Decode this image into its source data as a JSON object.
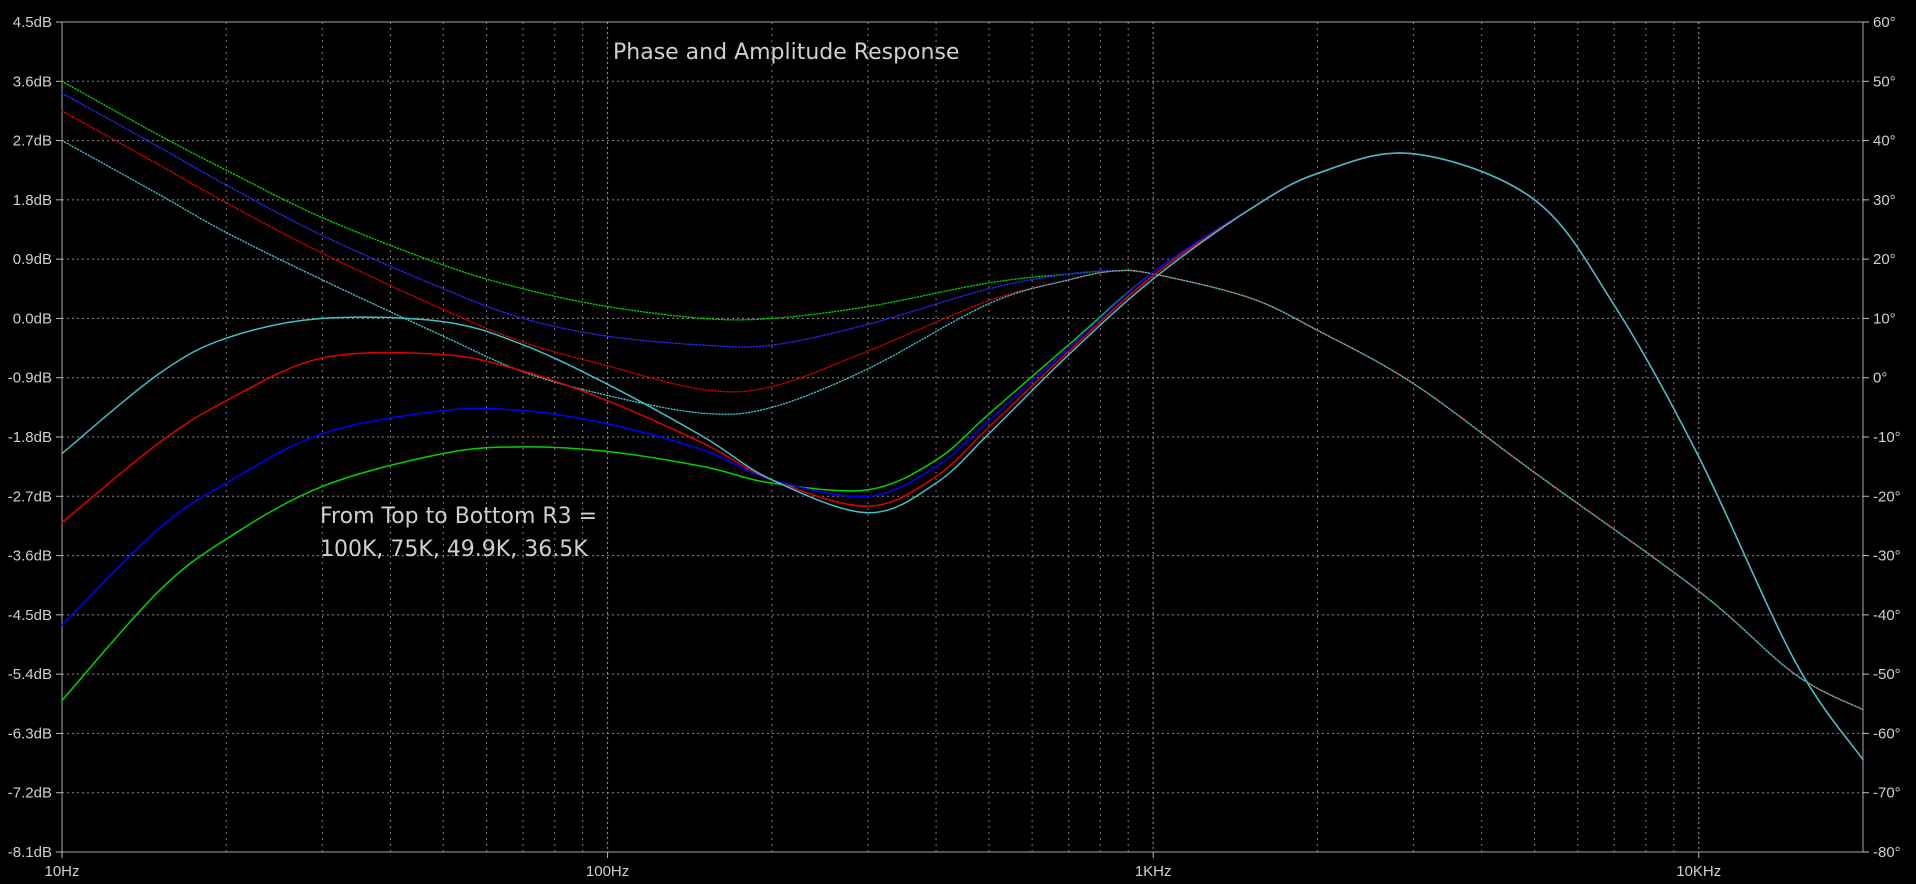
{
  "chart_data": {
    "type": "line",
    "title": "Phase and Amplitude Response",
    "annotation": [
      "From Top to Bottom R3 =",
      "100K, 75K, 49.9K, 36.5K"
    ],
    "x_scale": "log",
    "x_range": [
      10,
      20000
    ],
    "x_ticks": [
      {
        "value": 10,
        "label": "10Hz"
      },
      {
        "value": 100,
        "label": "100Hz"
      },
      {
        "value": 1000,
        "label": "1KHz"
      },
      {
        "value": 10000,
        "label": "10KHz"
      }
    ],
    "y_left": {
      "unit": "dB",
      "range": [
        -8.1,
        4.5
      ],
      "ticks": [
        "4.5dB",
        "3.6dB",
        "2.7dB",
        "1.8dB",
        "0.9dB",
        "0.0dB",
        "-0.9dB",
        "-1.8dB",
        "-2.7dB",
        "-3.6dB",
        "-4.5dB",
        "-5.4dB",
        "-6.3dB",
        "-7.2dB",
        "-8.1dB"
      ]
    },
    "y_right": {
      "unit": "°",
      "range": [
        -80,
        60
      ],
      "ticks": [
        "60°",
        "50°",
        "40°",
        "30°",
        "20°",
        "10°",
        "0°",
        "-10°",
        "-20°",
        "-30°",
        "-40°",
        "-50°",
        "-60°",
        "-70°",
        "-80°"
      ]
    },
    "grid": true,
    "series": [
      {
        "color": "#00d200",
        "axis": "left",
        "style": "solid",
        "x": [
          10,
          15,
          20,
          30,
          50,
          70,
          100,
          150,
          200,
          300,
          400,
          500,
          700,
          1000,
          1500,
          2000,
          3000,
          5000,
          7000,
          10000,
          15000,
          20000
        ],
        "y": [
          -5.8,
          -4.15,
          -3.35,
          -2.55,
          -2.05,
          -1.95,
          -2.02,
          -2.25,
          -2.5,
          -2.6,
          -2.15,
          -1.45,
          -0.4,
          0.7,
          1.65,
          2.2,
          2.5,
          1.8,
          0.2,
          -2.1,
          -5.2,
          -6.7
        ]
      },
      {
        "color": "#0000ff",
        "axis": "left",
        "style": "solid",
        "x": [
          10,
          15,
          20,
          30,
          50,
          70,
          100,
          150,
          200,
          300,
          400,
          500,
          700,
          1000,
          1500,
          2000,
          3000,
          5000,
          7000,
          10000,
          15000,
          20000
        ],
        "y": [
          -4.65,
          -3.2,
          -2.5,
          -1.75,
          -1.4,
          -1.4,
          -1.6,
          -2.0,
          -2.45,
          -2.7,
          -2.25,
          -1.55,
          -0.45,
          0.7,
          1.65,
          2.2,
          2.5,
          1.8,
          0.2,
          -2.1,
          -5.2,
          -6.7
        ]
      },
      {
        "color": "#e00000",
        "axis": "left",
        "style": "solid",
        "x": [
          10,
          15,
          20,
          30,
          50,
          70,
          100,
          150,
          200,
          300,
          400,
          500,
          700,
          1000,
          1500,
          2000,
          3000,
          5000,
          7000,
          10000,
          15000,
          20000
        ],
        "y": [
          -3.1,
          -1.9,
          -1.25,
          -0.6,
          -0.55,
          -0.8,
          -1.25,
          -1.9,
          -2.45,
          -2.85,
          -2.4,
          -1.65,
          -0.5,
          0.65,
          1.65,
          2.2,
          2.5,
          1.8,
          0.2,
          -2.1,
          -5.2,
          -6.7
        ]
      },
      {
        "color": "#3fc0c8",
        "axis": "left",
        "style": "solid",
        "x": [
          10,
          15,
          20,
          30,
          50,
          70,
          100,
          150,
          200,
          300,
          400,
          500,
          700,
          1000,
          1500,
          2000,
          3000,
          5000,
          7000,
          10000,
          15000,
          20000
        ],
        "y": [
          -2.05,
          -0.85,
          -0.3,
          0.0,
          -0.05,
          -0.4,
          -1.0,
          -1.8,
          -2.45,
          -2.95,
          -2.5,
          -1.75,
          -0.55,
          0.6,
          1.65,
          2.2,
          2.5,
          1.8,
          0.2,
          -2.1,
          -5.2,
          -6.7
        ]
      },
      {
        "color": "#00d200",
        "axis": "right",
        "style": "dotted",
        "x": [
          10,
          15,
          20,
          30,
          50,
          70,
          100,
          150,
          200,
          300,
          500,
          700,
          850,
          1000,
          1500,
          2000,
          3000,
          5000,
          10000,
          15000,
          20000
        ],
        "y": [
          50,
          41,
          35,
          27,
          19,
          15,
          12,
          10,
          10,
          12,
          16,
          17.5,
          18,
          17.5,
          13.5,
          8,
          -1,
          -16,
          -36,
          -50,
          -56
        ]
      },
      {
        "color": "#2a2aff",
        "axis": "right",
        "style": "dotted",
        "x": [
          10,
          15,
          20,
          30,
          50,
          70,
          100,
          150,
          200,
          300,
          500,
          700,
          850,
          1000,
          1500,
          2000,
          3000,
          5000,
          10000,
          15000,
          20000
        ],
        "y": [
          48,
          39,
          32.5,
          24,
          15,
          10,
          7,
          5.5,
          5.5,
          9,
          15,
          17.5,
          18,
          17.5,
          13.5,
          8,
          -1,
          -16,
          -36,
          -50,
          -56
        ]
      },
      {
        "color": "#e00000",
        "axis": "right",
        "style": "dotted",
        "x": [
          10,
          15,
          20,
          30,
          50,
          70,
          100,
          150,
          200,
          300,
          500,
          700,
          850,
          1000,
          1500,
          2000,
          3000,
          5000,
          10000,
          15000,
          20000
        ],
        "y": [
          45,
          36,
          29.5,
          21,
          11.5,
          6,
          2,
          -2,
          -1.5,
          4.5,
          13,
          16.5,
          18,
          17.5,
          13.5,
          8,
          -1,
          -16,
          -36,
          -50,
          -56
        ]
      },
      {
        "color": "#3fc0c8",
        "axis": "right",
        "style": "dotted",
        "x": [
          10,
          15,
          20,
          30,
          50,
          70,
          100,
          150,
          200,
          300,
          500,
          700,
          850,
          1000,
          1500,
          2000,
          3000,
          5000,
          10000,
          15000,
          20000
        ],
        "y": [
          40,
          31,
          24.5,
          16.5,
          7,
          1,
          -3,
          -6,
          -5,
          1.5,
          12.5,
          16.5,
          18,
          17.5,
          13.5,
          8,
          -1,
          -16,
          -36,
          -50,
          -56
        ]
      }
    ]
  }
}
